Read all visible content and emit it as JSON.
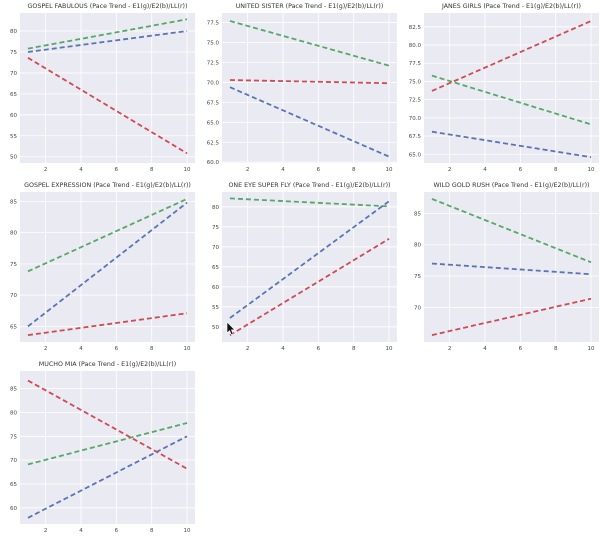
{
  "colors": {
    "blue": "#5a74b4",
    "red": "#cf4a55",
    "green": "#55a868",
    "panel_bg": "#eaeaf2"
  },
  "chart_data": [
    {
      "type": "line",
      "title": "GOSPEL FABULOUS (Pace Trend - E1(g)/E2(b)/LL(r))",
      "x": [
        1,
        10
      ],
      "xticks": [
        "2",
        "4",
        "6",
        "8",
        "10"
      ],
      "yticks": [
        "50",
        "55",
        "60",
        "65",
        "70",
        "75",
        "80"
      ],
      "xlim": [
        0.55,
        10.45
      ],
      "ylim": [
        48.5,
        84.3
      ],
      "series": [
        {
          "name": "E1",
          "color": "green",
          "values": [
            75.8,
            82.8
          ]
        },
        {
          "name": "E2",
          "color": "blue",
          "values": [
            75.0,
            80.0
          ]
        },
        {
          "name": "LL",
          "color": "red",
          "values": [
            73.6,
            50.8
          ]
        }
      ]
    },
    {
      "type": "line",
      "title": "UNITED SISTER (Pace Trend - E1(g)/E2(b)/LL(r))",
      "x": [
        1,
        10
      ],
      "xticks": [
        "2",
        "4",
        "6",
        "8",
        "10"
      ],
      "yticks": [
        "60.0",
        "62.5",
        "65.0",
        "67.5",
        "70.0",
        "72.5",
        "75.0",
        "77.5"
      ],
      "xlim": [
        0.55,
        10.45
      ],
      "ylim": [
        59.9,
        78.7
      ],
      "series": [
        {
          "name": "E1",
          "color": "green",
          "values": [
            77.7,
            72.1
          ]
        },
        {
          "name": "E2",
          "color": "blue",
          "values": [
            69.4,
            60.7
          ]
        },
        {
          "name": "LL",
          "color": "red",
          "values": [
            70.3,
            69.9
          ]
        }
      ]
    },
    {
      "type": "line",
      "title": "JANES GIRLS (Pace Trend - E1(g)/E2(b)/LL(r))",
      "x": [
        1,
        10
      ],
      "xticks": [
        "2",
        "4",
        "6",
        "8",
        "10"
      ],
      "yticks": [
        "65.0",
        "67.5",
        "70.0",
        "72.5",
        "75.0",
        "77.5",
        "80.0",
        "82.5"
      ],
      "xlim": [
        0.55,
        10.45
      ],
      "ylim": [
        63.8,
        84.4
      ],
      "series": [
        {
          "name": "E1",
          "color": "green",
          "values": [
            75.8,
            69.1
          ]
        },
        {
          "name": "E2",
          "color": "blue",
          "values": [
            68.1,
            64.6
          ]
        },
        {
          "name": "LL",
          "color": "red",
          "values": [
            73.7,
            83.3
          ]
        }
      ]
    },
    {
      "type": "line",
      "title": "GOSPEL EXPRESSION (Pace Trend - E1(g)/E2(b)/LL(r))",
      "x": [
        1,
        10
      ],
      "xticks": [
        "2",
        "4",
        "6",
        "8",
        "10"
      ],
      "yticks": [
        "65",
        "70",
        "75",
        "80",
        "85"
      ],
      "xlim": [
        0.55,
        10.45
      ],
      "ylim": [
        62.5,
        86.5
      ],
      "series": [
        {
          "name": "E1",
          "color": "green",
          "values": [
            73.8,
            85.4
          ]
        },
        {
          "name": "E2",
          "color": "blue",
          "values": [
            65.0,
            84.8
          ]
        },
        {
          "name": "LL",
          "color": "red",
          "values": [
            63.6,
            67.1
          ]
        }
      ]
    },
    {
      "type": "line",
      "title": "ONE EYE SUPER FLY (Pace Trend - E1(g)/E2(b)/LL(r))",
      "x": [
        1,
        10
      ],
      "xticks": [
        "2",
        "4",
        "6",
        "8",
        "10"
      ],
      "yticks": [
        "50",
        "55",
        "60",
        "65",
        "70",
        "75",
        "80"
      ],
      "xlim": [
        0.55,
        10.45
      ],
      "ylim": [
        46.2,
        83.7
      ],
      "series": [
        {
          "name": "E1",
          "color": "green",
          "values": [
            82.1,
            80.1
          ]
        },
        {
          "name": "E2",
          "color": "blue",
          "values": [
            52.2,
            81.4
          ]
        },
        {
          "name": "LL",
          "color": "red",
          "values": [
            47.9,
            72.0
          ]
        }
      ]
    },
    {
      "type": "line",
      "title": "WILD GOLD RUSH (Pace Trend - E1(g)/E2(b)/LL(r))",
      "x": [
        1,
        10
      ],
      "xticks": [
        "2",
        "4",
        "6",
        "8",
        "10"
      ],
      "yticks": [
        "70",
        "75",
        "80",
        "85"
      ],
      "xlim": [
        0.55,
        10.45
      ],
      "ylim": [
        64.5,
        88.4
      ],
      "series": [
        {
          "name": "E1",
          "color": "green",
          "values": [
            87.3,
            77.2
          ]
        },
        {
          "name": "E2",
          "color": "blue",
          "values": [
            77.0,
            75.3
          ]
        },
        {
          "name": "LL",
          "color": "red",
          "values": [
            65.6,
            71.4
          ]
        }
      ]
    },
    {
      "type": "line",
      "title": "MUCHO MIA (Pace Trend - E1(g)/E2(b)/LL(r))",
      "x": [
        1,
        10
      ],
      "xticks": [
        "2",
        "4",
        "6",
        "8",
        "10"
      ],
      "yticks": [
        "60",
        "65",
        "70",
        "75",
        "80",
        "85"
      ],
      "xlim": [
        0.55,
        10.45
      ],
      "ylim": [
        56.6,
        88.7
      ],
      "series": [
        {
          "name": "E1",
          "color": "green",
          "values": [
            69.1,
            77.8
          ]
        },
        {
          "name": "E2",
          "color": "blue",
          "values": [
            57.9,
            75.0
          ]
        },
        {
          "name": "LL",
          "color": "red",
          "values": [
            86.7,
            68.2
          ]
        }
      ]
    }
  ]
}
